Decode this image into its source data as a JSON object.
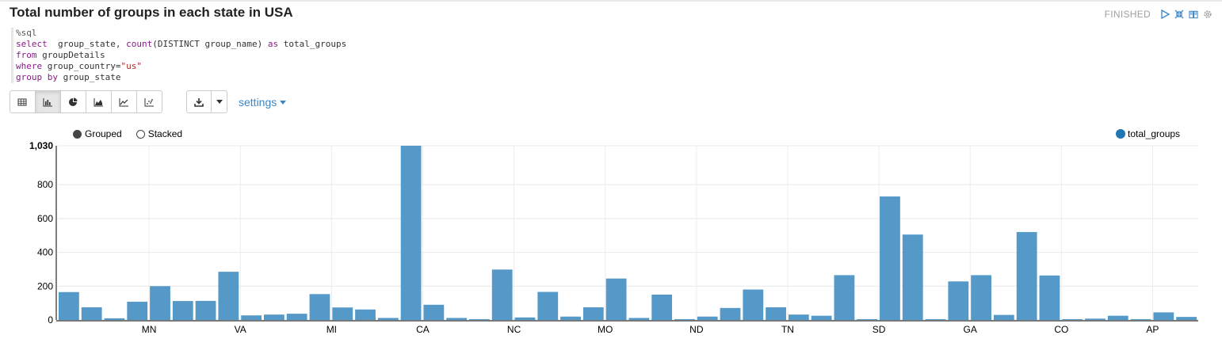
{
  "paragraph": {
    "title": "Total number of groups in each state in USA",
    "status": "FINISHED",
    "icons": [
      "run-icon",
      "collapse-icon",
      "book-icon",
      "gear-icon"
    ]
  },
  "editor": {
    "lines": [
      [
        {
          "t": "%sql",
          "c": "cm"
        }
      ],
      [
        {
          "t": "select",
          "c": "kw"
        },
        {
          "t": "  group_state, ",
          "c": "fn"
        },
        {
          "t": "count",
          "c": "kw"
        },
        {
          "t": "(DISTINCT group_name) ",
          "c": "fn"
        },
        {
          "t": "as",
          "c": "kw"
        },
        {
          "t": " total_groups",
          "c": "fn"
        }
      ],
      [
        {
          "t": "from",
          "c": "kw"
        },
        {
          "t": " groupDetails",
          "c": "fn"
        }
      ],
      [
        {
          "t": "where",
          "c": "kw"
        },
        {
          "t": " group_country=",
          "c": "fn"
        },
        {
          "t": "\"us\"",
          "c": "str"
        }
      ],
      [
        {
          "t": "group by",
          "c": "kw"
        },
        {
          "t": " group_state",
          "c": "fn"
        }
      ]
    ]
  },
  "toolbar": {
    "buttons": [
      {
        "name": "table",
        "icon": "table-icon",
        "active": false
      },
      {
        "name": "bar",
        "icon": "bar-chart-icon",
        "active": true
      },
      {
        "name": "pie",
        "icon": "pie-chart-icon",
        "active": false
      },
      {
        "name": "area",
        "icon": "area-chart-icon",
        "active": false
      },
      {
        "name": "line",
        "icon": "line-chart-icon",
        "active": false
      },
      {
        "name": "scatter",
        "icon": "scatter-chart-icon",
        "active": false
      }
    ],
    "download_icon": "download-icon",
    "settings_label": "settings"
  },
  "legend": {
    "modes": [
      {
        "label": "Grouped",
        "selected": true
      },
      {
        "label": "Stacked",
        "selected": false
      }
    ],
    "series_label": "total_groups"
  },
  "colors": {
    "bar": "#5499c7",
    "accent": "#3a87c8"
  },
  "chart_data": {
    "type": "bar",
    "series": [
      {
        "name": "total_groups",
        "values": [
          165,
          75,
          10,
          108,
          200,
          112,
          113,
          285,
          27,
          32,
          37,
          153,
          74,
          62,
          12,
          1030,
          90,
          12,
          5,
          298,
          15,
          166,
          20,
          75,
          245,
          12,
          150,
          5,
          20,
          71,
          180,
          75,
          32,
          25,
          265,
          5,
          730,
          505,
          5,
          228,
          265,
          30,
          520,
          263,
          5,
          8,
          25,
          5,
          45,
          18
        ]
      }
    ],
    "tick_labels": [
      {
        "index": 3.5,
        "label": "MN"
      },
      {
        "index": 7.5,
        "label": "VA"
      },
      {
        "index": 11.5,
        "label": "MI"
      },
      {
        "index": 15.5,
        "label": "CA"
      },
      {
        "index": 19.5,
        "label": "NC"
      },
      {
        "index": 23.5,
        "label": "MO"
      },
      {
        "index": 27.5,
        "label": "ND"
      },
      {
        "index": 31.5,
        "label": "TN"
      },
      {
        "index": 35.5,
        "label": "SD"
      },
      {
        "index": 39.5,
        "label": "GA"
      },
      {
        "index": 43.5,
        "label": "CO"
      },
      {
        "index": 47.5,
        "label": "AP"
      }
    ],
    "y_ticks": [
      0,
      200,
      400,
      600,
      800,
      1030
    ],
    "y_tick_labels": [
      "0",
      "200",
      "400",
      "600",
      "800",
      "1,030"
    ],
    "ylim": [
      0,
      1030
    ],
    "grid": true,
    "legend_position": "top-right"
  }
}
